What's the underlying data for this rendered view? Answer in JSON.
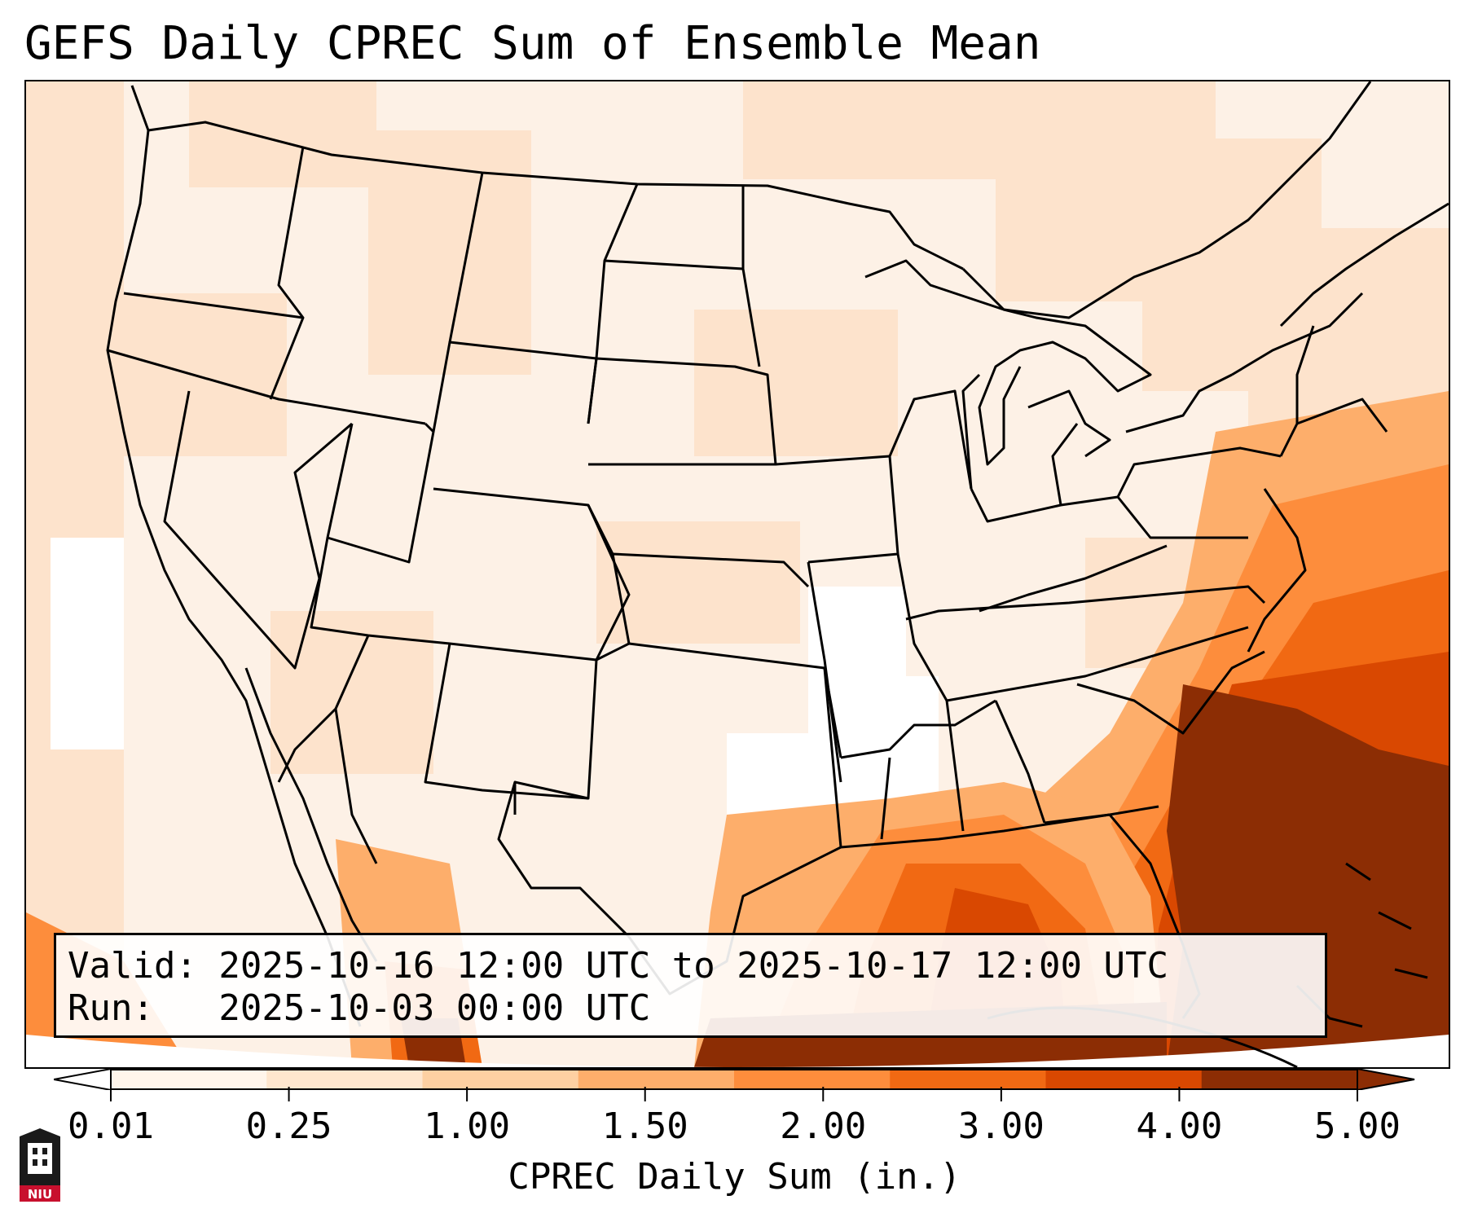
{
  "title": "GEFS Daily CPREC Sum of Ensemble Mean",
  "info": {
    "valid_line": "Valid: 2025-10-16 12:00 UTC to 2025-10-17 12:00 UTC",
    "run_line": "Run:   2025-10-03 00:00 UTC"
  },
  "colorbar": {
    "label": "CPREC Daily Sum (in.)",
    "ticks": [
      "0.01",
      "0.25",
      "1.00",
      "1.50",
      "2.00",
      "3.00",
      "4.00",
      "5.00"
    ],
    "colors": [
      "#fff5eb",
      "#fee6ce",
      "#fdd0a2",
      "#fdae6b",
      "#fd8d3c",
      "#f16913",
      "#d94801",
      "#8c2d04"
    ],
    "extend_low_color": "#ffffff",
    "extend_high_color": "#8c2d04"
  },
  "logo": {
    "text": "NIU",
    "color": "#c8102e"
  }
}
